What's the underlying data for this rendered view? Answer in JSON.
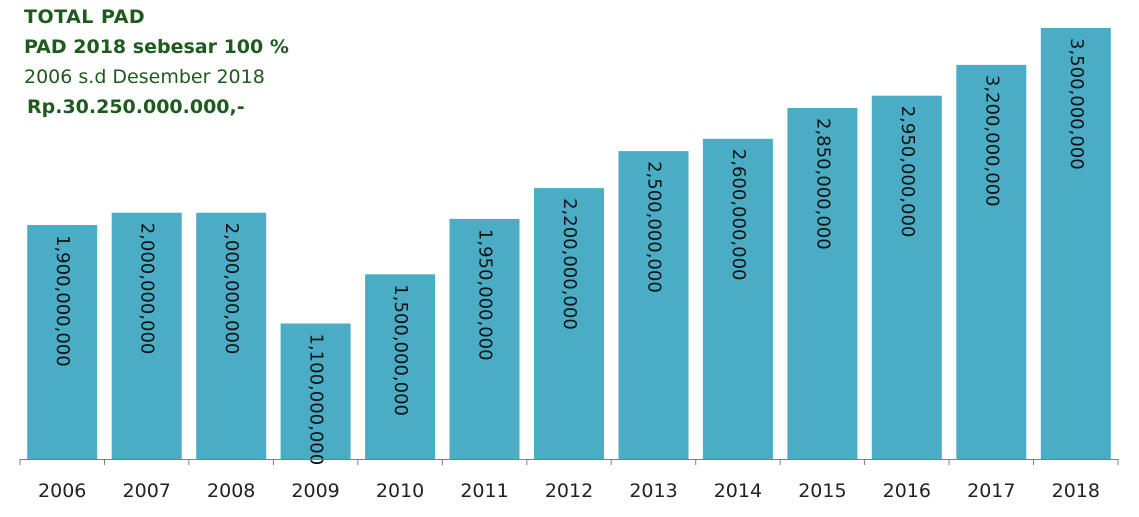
{
  "header": {
    "title": "TOTAL PAD",
    "line2": "PAD 2018 sebesar 100 %",
    "line3": "2006 s.d Desember  2018",
    "line4": "Rp.30.250.000.000,-"
  },
  "colors": {
    "bar": "#4bacc6",
    "axis": "#7f7f7f",
    "text": "#1f5a1f"
  },
  "chart_data": {
    "type": "bar",
    "title": "TOTAL PAD",
    "categories": [
      "2006",
      "2007",
      "2008",
      "2009",
      "2010",
      "2011",
      "2012",
      "2013",
      "2014",
      "2015",
      "2016",
      "2017",
      "2018"
    ],
    "values": [
      1900000000,
      2000000000,
      2000000000,
      1100000000,
      1500000000,
      1950000000,
      2200000000,
      2500000000,
      2600000000,
      2850000000,
      2950000000,
      3200000000,
      3500000000
    ],
    "value_labels": [
      "1,900,000,000",
      "2,000,000,000",
      "2,000,000,000",
      "1,100,000,000",
      "1,500,000,000",
      "1,950,000,000",
      "2,200,000,000",
      "2,500,000,000",
      "2,600,000,000",
      "2,850,000,000",
      "2,950,000,000",
      "3,200,000,000",
      "3,500,000,000"
    ],
    "xlabel": "",
    "ylabel": "",
    "ylim": [
      0,
      3500000000
    ],
    "grid": false,
    "legend": "none"
  }
}
